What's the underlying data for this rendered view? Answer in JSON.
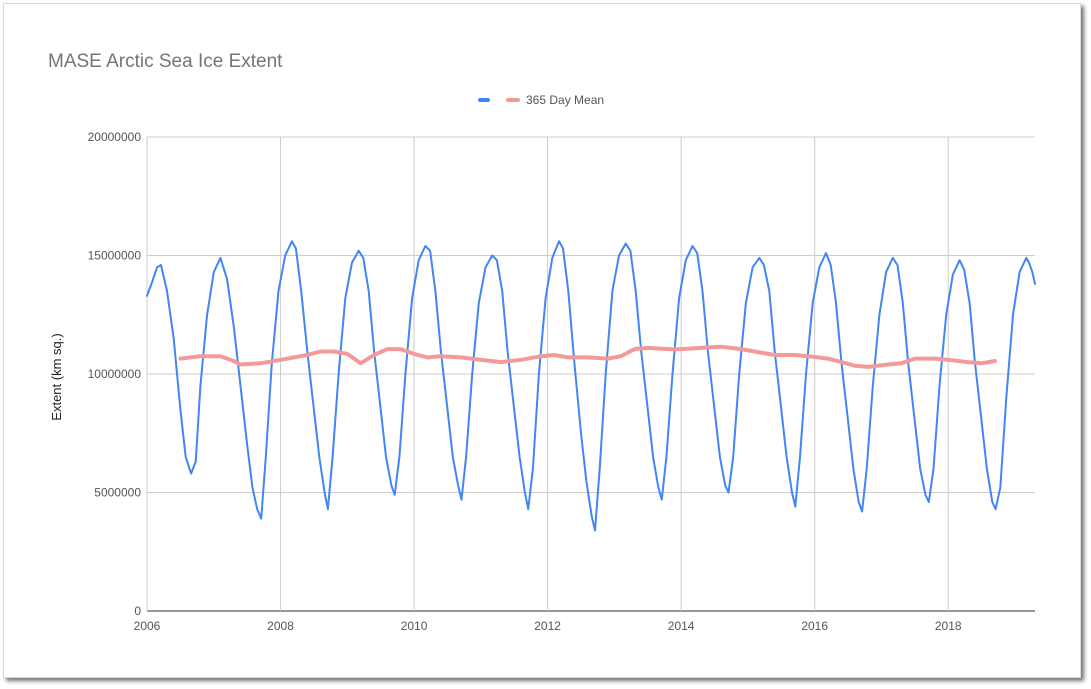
{
  "chart_data": {
    "type": "line",
    "title": "MASE Arctic Sea Ice Extent",
    "xlabel": "",
    "ylabel": "Extent (km sq.)",
    "xlim": [
      2006,
      2019.3
    ],
    "ylim": [
      0,
      20000000
    ],
    "y_ticks": [
      "0",
      "5000000",
      "10000000",
      "15000000",
      "20000000"
    ],
    "x_ticks": [
      "2006",
      "2008",
      "2010",
      "2012",
      "2014",
      "2016",
      "2018"
    ],
    "grid": true,
    "legend_position": "top",
    "series": [
      {
        "name": "",
        "color": "#4285f4",
        "x": [
          2006.0,
          2006.08,
          2006.15,
          2006.21,
          2006.3,
          2006.4,
          2006.5,
          2006.58,
          2006.66,
          2006.73,
          2006.8,
          2006.9,
          2007.0,
          2007.1,
          2007.2,
          2007.3,
          2007.4,
          2007.5,
          2007.58,
          2007.65,
          2007.71,
          2007.78,
          2007.87,
          2007.97,
          2008.07,
          2008.17,
          2008.23,
          2008.31,
          2008.4,
          2008.5,
          2008.58,
          2008.66,
          2008.71,
          2008.78,
          2008.87,
          2008.97,
          2009.07,
          2009.17,
          2009.24,
          2009.32,
          2009.4,
          2009.5,
          2009.58,
          2009.66,
          2009.71,
          2009.78,
          2009.87,
          2009.97,
          2010.07,
          2010.17,
          2010.24,
          2010.32,
          2010.4,
          2010.5,
          2010.58,
          2010.66,
          2010.71,
          2010.78,
          2010.87,
          2010.97,
          2011.07,
          2011.17,
          2011.24,
          2011.32,
          2011.4,
          2011.5,
          2011.58,
          2011.66,
          2011.71,
          2011.78,
          2011.87,
          2011.97,
          2012.07,
          2012.17,
          2012.23,
          2012.31,
          2012.4,
          2012.5,
          2012.58,
          2012.66,
          2012.71,
          2012.78,
          2012.87,
          2012.97,
          2013.07,
          2013.17,
          2013.24,
          2013.32,
          2013.4,
          2013.5,
          2013.58,
          2013.66,
          2013.71,
          2013.78,
          2013.87,
          2013.97,
          2014.07,
          2014.17,
          2014.24,
          2014.32,
          2014.4,
          2014.5,
          2014.58,
          2014.66,
          2014.71,
          2014.78,
          2014.87,
          2014.97,
          2015.07,
          2015.17,
          2015.24,
          2015.32,
          2015.4,
          2015.5,
          2015.58,
          2015.66,
          2015.71,
          2015.78,
          2015.87,
          2015.97,
          2016.07,
          2016.17,
          2016.24,
          2016.32,
          2016.4,
          2016.5,
          2016.58,
          2016.66,
          2016.71,
          2016.78,
          2016.87,
          2016.97,
          2017.07,
          2017.17,
          2017.24,
          2017.32,
          2017.4,
          2017.5,
          2017.58,
          2017.66,
          2017.71,
          2017.78,
          2017.87,
          2017.97,
          2018.07,
          2018.17,
          2018.24,
          2018.32,
          2018.4,
          2018.5,
          2018.58,
          2018.66,
          2018.71,
          2018.78,
          2018.87,
          2018.97,
          2019.07,
          2019.17,
          2019.21,
          2019.26,
          2019.3
        ],
        "y": [
          13300000,
          13900000,
          14500000,
          14600000,
          13500000,
          11500000,
          8500000,
          6500000,
          5800000,
          6300000,
          9500000,
          12500000,
          14300000,
          14900000,
          14000000,
          12000000,
          9500000,
          7000000,
          5200000,
          4300000,
          3900000,
          6500000,
          10500000,
          13500000,
          15000000,
          15600000,
          15300000,
          13500000,
          11000000,
          8500000,
          6500000,
          5000000,
          4300000,
          6500000,
          10000000,
          13200000,
          14700000,
          15200000,
          14900000,
          13500000,
          11000000,
          8500000,
          6500000,
          5300000,
          4900000,
          6500000,
          10000000,
          13200000,
          14800000,
          15400000,
          15200000,
          13500000,
          11000000,
          8500000,
          6500000,
          5300000,
          4700000,
          6500000,
          10000000,
          13000000,
          14500000,
          15000000,
          14800000,
          13500000,
          11000000,
          8500000,
          6500000,
          5000000,
          4300000,
          6000000,
          10000000,
          13200000,
          14900000,
          15600000,
          15300000,
          13500000,
          10500000,
          7500000,
          5500000,
          4000000,
          3400000,
          6000000,
          10000000,
          13500000,
          15000000,
          15500000,
          15200000,
          13500000,
          11000000,
          8500000,
          6500000,
          5200000,
          4700000,
          6500000,
          10000000,
          13200000,
          14800000,
          15400000,
          15100000,
          13500000,
          11000000,
          8500000,
          6500000,
          5300000,
          5000000,
          6500000,
          10000000,
          13000000,
          14500000,
          14900000,
          14600000,
          13500000,
          11000000,
          8500000,
          6500000,
          5000000,
          4400000,
          6500000,
          10000000,
          13000000,
          14500000,
          15100000,
          14600000,
          13000000,
          10500000,
          8000000,
          6000000,
          4600000,
          4200000,
          6000000,
          9500000,
          12500000,
          14300000,
          14900000,
          14600000,
          13000000,
          10500000,
          8000000,
          6000000,
          4900000,
          4600000,
          6000000,
          9500000,
          12500000,
          14200000,
          14800000,
          14400000,
          13000000,
          10500000,
          8000000,
          6000000,
          4600000,
          4300000,
          5200000,
          9000000,
          12500000,
          14300000,
          14900000,
          14700000,
          14300000,
          13800000
        ]
      },
      {
        "name": "365 Day Mean",
        "color": "#f4999a",
        "x": [
          2006.5,
          2006.8,
          2007.1,
          2007.3,
          2007.4,
          2007.7,
          2008.0,
          2008.2,
          2008.4,
          2008.6,
          2008.8,
          2009.0,
          2009.1,
          2009.2,
          2009.4,
          2009.6,
          2009.8,
          2010.0,
          2010.2,
          2010.4,
          2010.7,
          2011.0,
          2011.3,
          2011.6,
          2011.9,
          2012.1,
          2012.3,
          2012.6,
          2012.9,
          2013.1,
          2013.3,
          2013.5,
          2013.8,
          2014.0,
          2014.3,
          2014.6,
          2014.9,
          2015.1,
          2015.4,
          2015.7,
          2015.9,
          2016.2,
          2016.4,
          2016.6,
          2016.8,
          2017.1,
          2017.3,
          2017.5,
          2017.8,
          2018.0,
          2018.3,
          2018.5,
          2018.7
        ],
        "y": [
          10650000,
          10750000,
          10750000,
          10550000,
          10400000,
          10450000,
          10600000,
          10700000,
          10800000,
          10950000,
          10950000,
          10850000,
          10650000,
          10450000,
          10800000,
          11050000,
          11050000,
          10850000,
          10700000,
          10750000,
          10700000,
          10600000,
          10500000,
          10600000,
          10750000,
          10800000,
          10700000,
          10700000,
          10650000,
          10750000,
          11050000,
          11100000,
          11050000,
          11050000,
          11100000,
          11150000,
          11050000,
          10950000,
          10800000,
          10800000,
          10750000,
          10650000,
          10500000,
          10350000,
          10300000,
          10400000,
          10450000,
          10650000,
          10650000,
          10600000,
          10500000,
          10450000,
          10550000
        ]
      }
    ]
  }
}
